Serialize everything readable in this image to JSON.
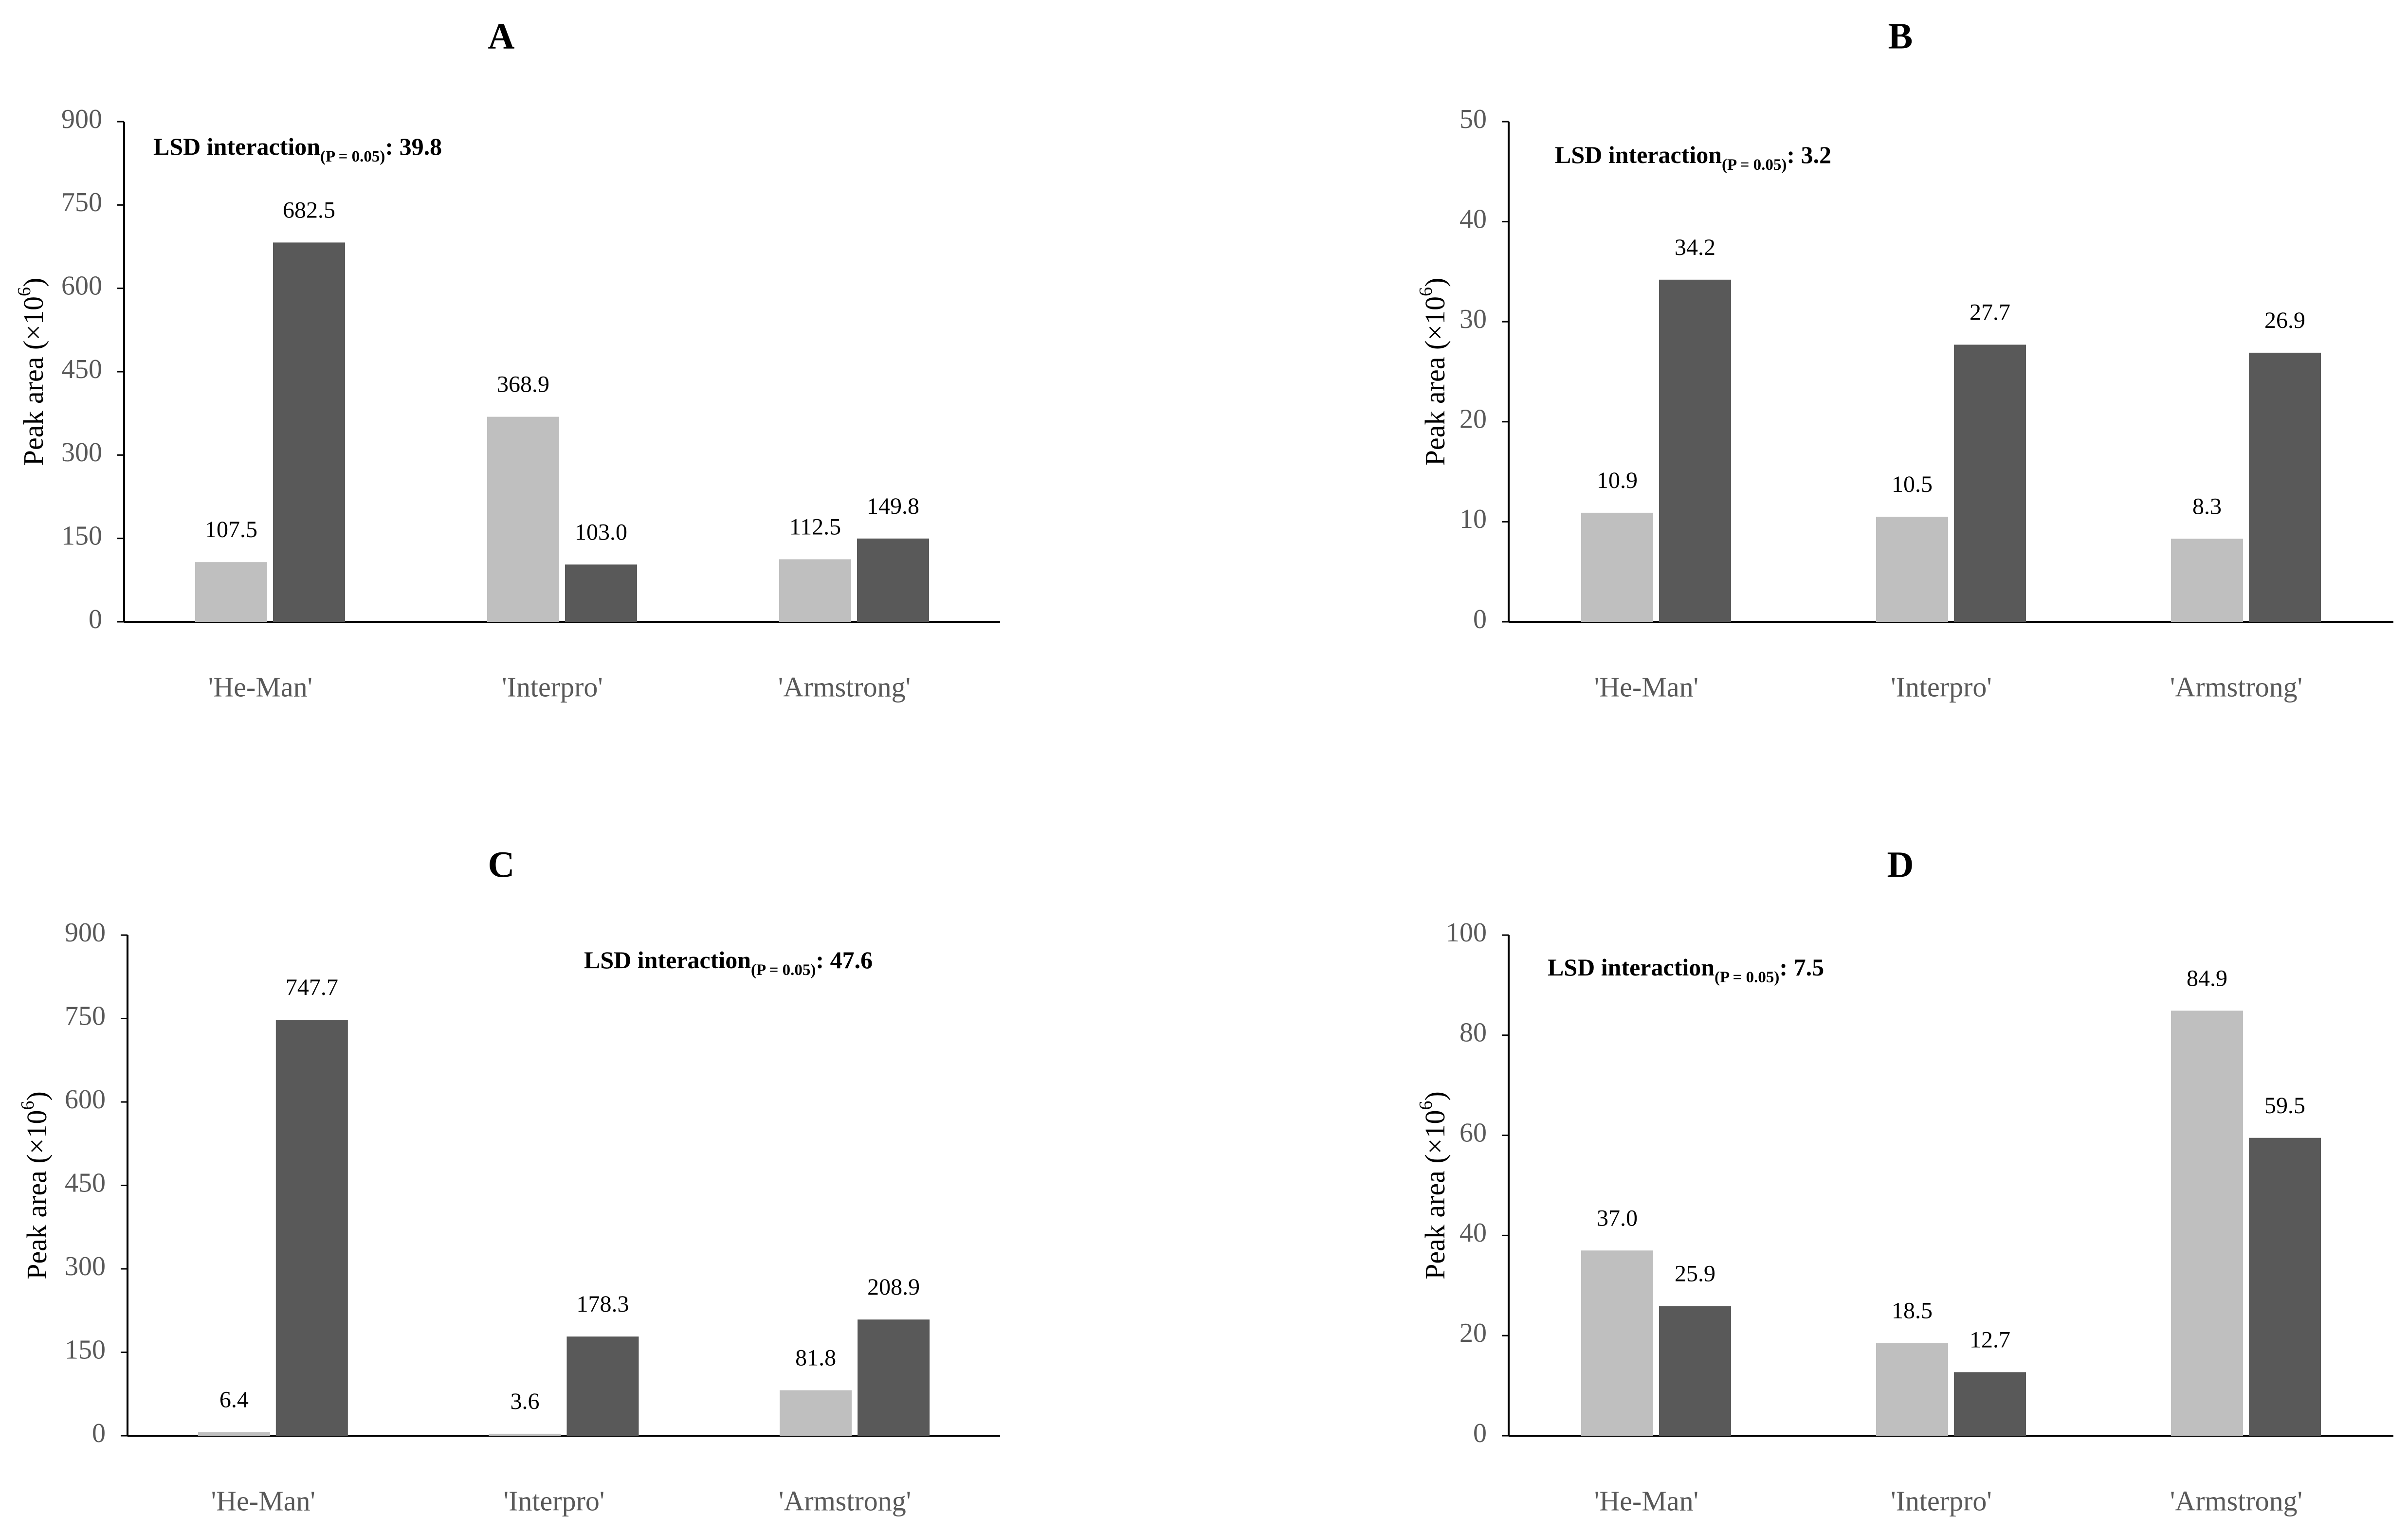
{
  "colors": {
    "light": "#bfbfbf",
    "dark": "#595959",
    "axis": "#000000",
    "tick_text": "#595959"
  },
  "chart_data": [
    {
      "panel": "A",
      "type": "bar",
      "categories": [
        "'He-Man'",
        "'Interpro'",
        "'Armstrong'"
      ],
      "series": [
        {
          "color": "#bfbfbf",
          "values": [
            107.5,
            368.9,
            112.5
          ],
          "labels": [
            "107.5",
            "368.9",
            "112.5"
          ]
        },
        {
          "color": "#595959",
          "values": [
            682.5,
            103.0,
            149.8
          ],
          "labels": [
            "682.5",
            "103.0",
            "149.8"
          ]
        }
      ],
      "ylabel_main": "Peak area (×10",
      "ylabel_sup": "6",
      "ylabel_end": ")",
      "ylim": [
        0,
        900
      ],
      "yticks": [
        "0",
        "150",
        "300",
        "450",
        "600",
        "750",
        "900"
      ],
      "annotation": {
        "main": "LSD interaction",
        "sub": "(P = 0.05)",
        "value": ": 39.8"
      },
      "grid": false
    },
    {
      "panel": "B",
      "type": "bar",
      "categories": [
        "'He-Man'",
        "'Interpro'",
        "'Armstrong'"
      ],
      "series": [
        {
          "color": "#bfbfbf",
          "values": [
            10.9,
            10.5,
            8.3
          ],
          "labels": [
            "10.9",
            "10.5",
            "8.3"
          ]
        },
        {
          "color": "#595959",
          "values": [
            34.2,
            27.7,
            26.9
          ],
          "labels": [
            "34.2",
            "27.7",
            "26.9"
          ]
        }
      ],
      "ylabel_main": "Peak area (×10",
      "ylabel_sup": "6",
      "ylabel_end": ")",
      "ylim": [
        0,
        50
      ],
      "yticks": [
        "0",
        "10",
        "20",
        "30",
        "40",
        "50"
      ],
      "annotation": {
        "main": "LSD interaction",
        "sub": "(P = 0.05)",
        "value": ": 3.2"
      },
      "grid": false
    },
    {
      "panel": "C",
      "type": "bar",
      "categories": [
        "'He-Man'",
        "'Interpro'",
        "'Armstrong'"
      ],
      "series": [
        {
          "color": "#bfbfbf",
          "values": [
            6.4,
            3.6,
            81.8
          ],
          "labels": [
            "6.4",
            "3.6",
            "81.8"
          ]
        },
        {
          "color": "#595959",
          "values": [
            747.7,
            178.3,
            208.9
          ],
          "labels": [
            "747.7",
            "178.3",
            "208.9"
          ]
        }
      ],
      "ylabel_main": "Peak area (×10",
      "ylabel_sup": "6",
      "ylabel_end": ")",
      "ylim": [
        0,
        900
      ],
      "yticks": [
        "0",
        "150",
        "300",
        "450",
        "600",
        "750",
        "900"
      ],
      "annotation": {
        "main": "LSD interaction",
        "sub": "(P = 0.05)",
        "value": ": 47.6"
      },
      "grid": false
    },
    {
      "panel": "D",
      "type": "bar",
      "categories": [
        "'He-Man'",
        "'Interpro'",
        "'Armstrong'"
      ],
      "series": [
        {
          "color": "#bfbfbf",
          "values": [
            37.0,
            18.5,
            84.9
          ],
          "labels": [
            "37.0",
            "18.5",
            "84.9"
          ]
        },
        {
          "color": "#595959",
          "values": [
            25.9,
            12.7,
            59.5
          ],
          "labels": [
            "25.9",
            "12.7",
            "59.5"
          ]
        }
      ],
      "ylabel_main": "Peak area (×10",
      "ylabel_sup": "6",
      "ylabel_end": ")",
      "ylim": [
        0,
        100
      ],
      "yticks": [
        "0",
        "20",
        "40",
        "60",
        "80",
        "100"
      ],
      "annotation": {
        "main": "LSD interaction",
        "sub": "(P = 0.05)",
        "value": ": 7.5"
      },
      "grid": false
    }
  ]
}
